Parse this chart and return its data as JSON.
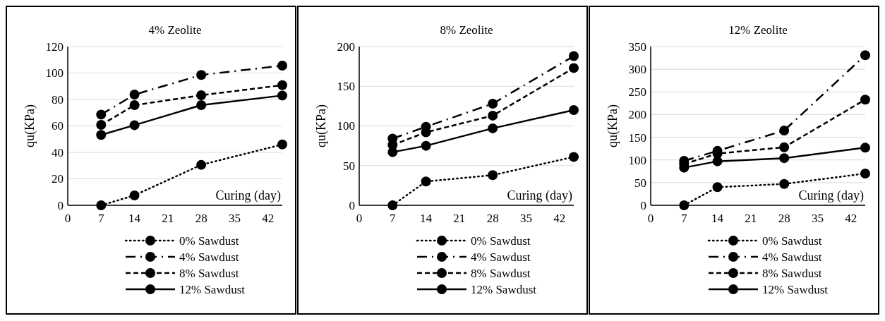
{
  "chart_data": [
    {
      "type": "line",
      "title": "4% Zeolite",
      "xlabel": "Curing (day)",
      "ylabel": "qu(KPa)",
      "x": [
        7,
        14,
        28,
        45
      ],
      "xlim": [
        0,
        45
      ],
      "xticks": [
        0,
        7,
        14,
        21,
        28,
        35,
        42
      ],
      "ylim": [
        0,
        120
      ],
      "yticks": [
        0,
        20,
        40,
        60,
        80,
        100,
        120
      ],
      "grid": "y",
      "legend": "bottom",
      "marker": "circle",
      "series": [
        {
          "name": "0% Sawdust",
          "color": "#000000",
          "line_style": "dotted",
          "values": [
            0,
            7.5,
            30.6,
            46
          ]
        },
        {
          "name": "4% Sawdust",
          "color": "#000000",
          "line_style": "dashdot",
          "values": [
            68.6,
            83.7,
            98.5,
            105.6
          ]
        },
        {
          "name": "8% Sawdust",
          "color": "#000000",
          "line_style": "dashed",
          "values": [
            60.8,
            75.7,
            83.2,
            90.8
          ]
        },
        {
          "name": "12% Sawdust",
          "color": "#000000",
          "line_style": "solid",
          "values": [
            53.2,
            60.6,
            75.7,
            83
          ]
        }
      ]
    },
    {
      "type": "line",
      "title": "8% Zeolite",
      "xlabel": "Curing (day)",
      "ylabel": "qu(KPa)",
      "x": [
        7,
        14,
        28,
        45
      ],
      "xlim": [
        0,
        45
      ],
      "xticks": [
        0,
        7,
        14,
        21,
        28,
        35,
        42
      ],
      "ylim": [
        0,
        200
      ],
      "yticks": [
        0,
        50,
        100,
        150,
        200
      ],
      "grid": "y",
      "legend": "bottom",
      "marker": "circle",
      "series": [
        {
          "name": "0% Sawdust",
          "color": "#000000",
          "line_style": "dotted",
          "values": [
            0,
            30,
            38,
            61
          ]
        },
        {
          "name": "4% Sawdust",
          "color": "#000000",
          "line_style": "dashdot",
          "values": [
            84,
            99,
            128,
            188
          ]
        },
        {
          "name": "8% Sawdust",
          "color": "#000000",
          "line_style": "dashed",
          "values": [
            76,
            92,
            113,
            173
          ]
        },
        {
          "name": "12% Sawdust",
          "color": "#000000",
          "line_style": "solid",
          "values": [
            67,
            75,
            97,
            120
          ]
        }
      ]
    },
    {
      "type": "line",
      "title": "12% Zeolite",
      "xlabel": "Curing (day)",
      "ylabel": "qu(KPa)",
      "x": [
        7,
        14,
        28,
        45
      ],
      "xlim": [
        0,
        45
      ],
      "xticks": [
        0,
        7,
        14,
        21,
        28,
        35,
        42
      ],
      "ylim": [
        0,
        350
      ],
      "yticks": [
        0,
        50,
        100,
        150,
        200,
        250,
        300,
        350
      ],
      "grid": "y",
      "legend": "bottom",
      "marker": "circle",
      "series": [
        {
          "name": "0% Sawdust",
          "color": "#000000",
          "line_style": "dotted",
          "values": [
            0,
            40,
            47,
            70
          ]
        },
        {
          "name": "4% Sawdust",
          "color": "#000000",
          "line_style": "dashdot",
          "values": [
            98,
            120,
            165,
            331
          ]
        },
        {
          "name": "8% Sawdust",
          "color": "#000000",
          "line_style": "dashed",
          "values": [
            91,
            114,
            128,
            233
          ]
        },
        {
          "name": "12% Sawdust",
          "color": "#000000",
          "line_style": "solid",
          "values": [
            83,
            97,
            104,
            127
          ]
        }
      ]
    }
  ]
}
